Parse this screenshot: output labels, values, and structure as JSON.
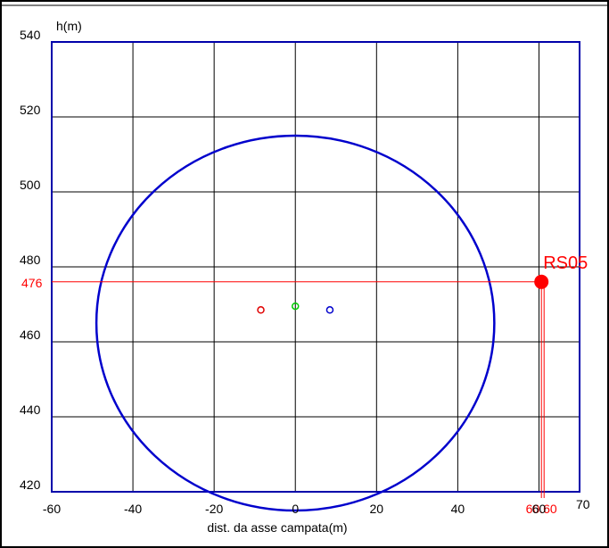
{
  "chart_data": {
    "type": "scatter",
    "xlabel": "dist. da asse campata(m)",
    "ylabel": "h(m)",
    "xlim": [
      -60,
      70
    ],
    "ylim": [
      420,
      540
    ],
    "x_ticks": [
      "-60",
      "-40",
      "-20",
      "0",
      "20",
      "40",
      "60",
      "70"
    ],
    "y_ticks": [
      "420",
      "440",
      "460",
      "480",
      "500",
      "520",
      "540"
    ],
    "grid": true,
    "circle": {
      "center": [
        0,
        465
      ],
      "radius_x": 49,
      "radius_y": 50,
      "color": "#0000cc"
    },
    "markers": [
      {
        "x": -8.5,
        "y": 468.5,
        "color": "#e00000"
      },
      {
        "x": 0,
        "y": 469.5,
        "color": "#00cc00"
      },
      {
        "x": 8.5,
        "y": 468.5,
        "color": "#0000cc"
      }
    ],
    "point": {
      "label": "RS05",
      "x": 60.6,
      "y": 476,
      "x_label": "60.60",
      "y_label": "476",
      "color": "#ff0000"
    }
  },
  "colors": {
    "axis_frame": "#0000aa",
    "grid": "#000000",
    "tick_text": "#000000",
    "highlight": "#ff0000"
  }
}
